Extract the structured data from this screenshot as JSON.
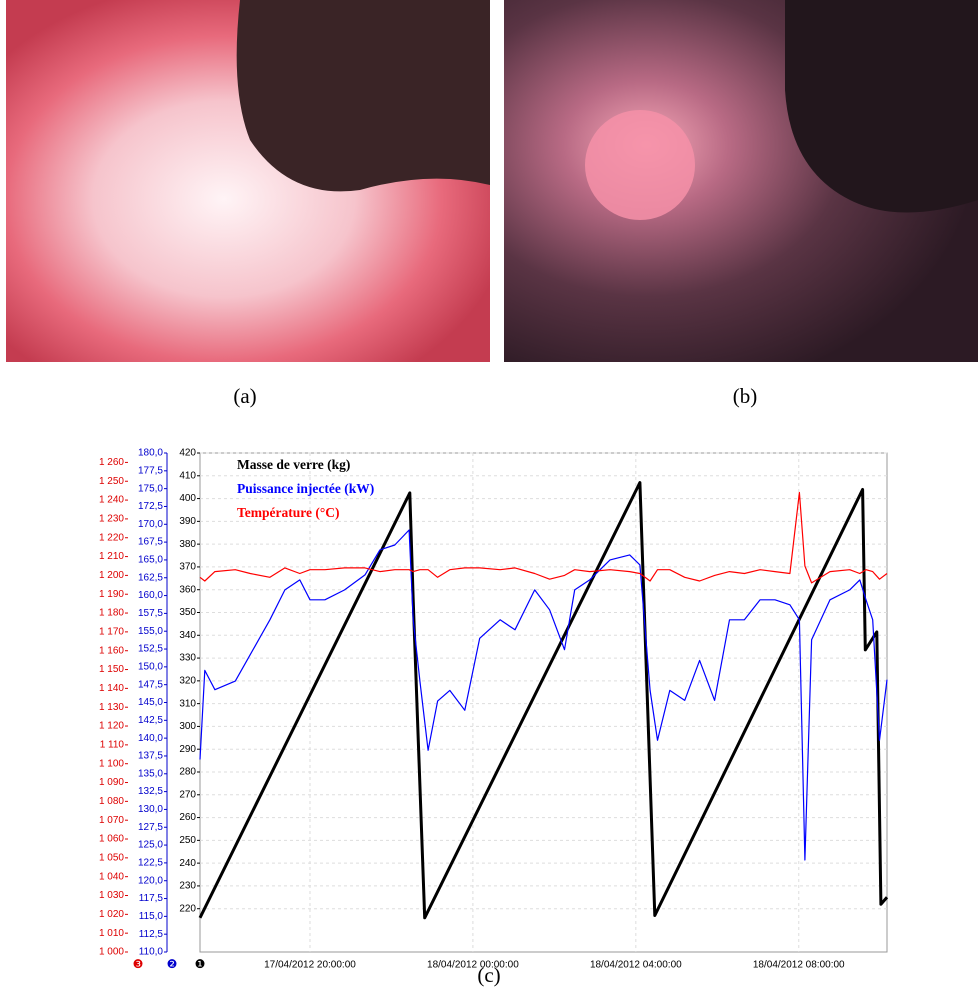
{
  "captions": [
    "(a)",
    "(b)",
    "(c)"
  ],
  "chart_data": {
    "type": "line",
    "ylabel": "❶",
    "y2label": "❷",
    "y3label": "❸",
    "xlim": [
      "2012-04-17T17:18:00",
      "2012-04-18T10:10:00"
    ],
    "xticks": [
      {
        "value": "2012-04-17T20:00:00",
        "label": "17/04/2012 20:00:00"
      },
      {
        "value": "2012-04-18T00:00:00",
        "label": "18/04/2012 00:00:00"
      },
      {
        "value": "2012-04-18T04:00:00",
        "label": "18/04/2012 04:00:00"
      },
      {
        "value": "2012-04-18T08:00:00",
        "label": "18/04/2012 08:00:00"
      }
    ],
    "ylim": [
      201,
      420
    ],
    "yticks": [
      220,
      230,
      240,
      250,
      260,
      270,
      280,
      290,
      300,
      310,
      320,
      330,
      340,
      350,
      360,
      370,
      380,
      390,
      400,
      410,
      420
    ],
    "y2lim": [
      110,
      180
    ],
    "y2ticks": [
      {
        "value": 110,
        "label": "110,0"
      },
      {
        "value": 112.5,
        "label": "112,5"
      },
      {
        "value": 115,
        "label": "115,0"
      },
      {
        "value": 117.5,
        "label": "117,5"
      },
      {
        "value": 120,
        "label": "120,0"
      },
      {
        "value": 122.5,
        "label": "122,5"
      },
      {
        "value": 125,
        "label": "125,0"
      },
      {
        "value": 127.5,
        "label": "127,5"
      },
      {
        "value": 130,
        "label": "130,0"
      },
      {
        "value": 132.5,
        "label": "132,5"
      },
      {
        "value": 135,
        "label": "135,0"
      },
      {
        "value": 137.5,
        "label": "137,5"
      },
      {
        "value": 140,
        "label": "140,0"
      },
      {
        "value": 142.5,
        "label": "142,5"
      },
      {
        "value": 145,
        "label": "145,0"
      },
      {
        "value": 147.5,
        "label": "147,5"
      },
      {
        "value": 150,
        "label": "150,0"
      },
      {
        "value": 152.5,
        "label": "152,5"
      },
      {
        "value": 155,
        "label": "155,0"
      },
      {
        "value": 157.5,
        "label": "157,5"
      },
      {
        "value": 160,
        "label": "160,0"
      },
      {
        "value": 162.5,
        "label": "162,5"
      },
      {
        "value": 165,
        "label": "165,0"
      },
      {
        "value": 167.5,
        "label": "167,5"
      },
      {
        "value": 170,
        "label": "170,0"
      },
      {
        "value": 172.5,
        "label": "172,5"
      },
      {
        "value": 175,
        "label": "175,0"
      },
      {
        "value": 177.5,
        "label": "177,5"
      },
      {
        "value": 180,
        "label": "180,0"
      }
    ],
    "y3lim": [
      1000,
      1265
    ],
    "y3ticks": [
      {
        "value": 1000,
        "label": "1 000"
      },
      {
        "value": 1010,
        "label": "1 010"
      },
      {
        "value": 1020,
        "label": "1 020"
      },
      {
        "value": 1030,
        "label": "1 030"
      },
      {
        "value": 1040,
        "label": "1 040"
      },
      {
        "value": 1050,
        "label": "1 050"
      },
      {
        "value": 1060,
        "label": "1 060"
      },
      {
        "value": 1070,
        "label": "1 070"
      },
      {
        "value": 1080,
        "label": "1 080"
      },
      {
        "value": 1090,
        "label": "1 090"
      },
      {
        "value": 1100,
        "label": "1 100"
      },
      {
        "value": 1110,
        "label": "1 110"
      },
      {
        "value": 1120,
        "label": "1 120"
      },
      {
        "value": 1130,
        "label": "1 130"
      },
      {
        "value": 1140,
        "label": "1 140"
      },
      {
        "value": 1150,
        "label": "1 150"
      },
      {
        "value": 1160,
        "label": "1 160"
      },
      {
        "value": 1170,
        "label": "1 170"
      },
      {
        "value": 1180,
        "label": "1 180"
      },
      {
        "value": 1190,
        "label": "1 190"
      },
      {
        "value": 1200,
        "label": "1 200"
      },
      {
        "value": 1210,
        "label": "1 210"
      },
      {
        "value": 1220,
        "label": "1 220"
      },
      {
        "value": 1230,
        "label": "1 230"
      },
      {
        "value": 1240,
        "label": "1 240"
      },
      {
        "value": 1250,
        "label": "1 250"
      },
      {
        "value": 1260,
        "label": "1 260"
      }
    ],
    "grid": true,
    "legend": "upper left",
    "series": [
      {
        "name": "Masse de verre (kg)",
        "color": "#000000",
        "axis": "y",
        "x": [
          "2012-04-17T17:18:00",
          "2012-04-17T22:27:00",
          "2012-04-17T22:32:00",
          "2012-04-17T22:49:00",
          "2012-04-18T04:06:00",
          "2012-04-18T04:28:00",
          "2012-04-18T09:34:00",
          "2012-04-18T09:38:00",
          "2012-04-18T09:55:00",
          "2012-04-18T10:01:00",
          "2012-04-18T10:10:00"
        ],
        "values": [
          216,
          402.5,
          355.5,
          216,
          407,
          217,
          404,
          333.6,
          341.5,
          222,
          225
        ]
      },
      {
        "name": "Puissance injectée (kW)",
        "color": "#0000ff",
        "axis": "y2",
        "x": [
          "2012-04-17T17:18:00",
          "2012-04-17T17:25:00",
          "2012-04-17T17:40:00",
          "2012-04-17T18:10:00",
          "2012-04-17T18:32:00",
          "2012-04-17T19:01:00",
          "2012-04-17T19:23:00",
          "2012-04-17T19:45:00",
          "2012-04-17T20:00:00",
          "2012-04-17T20:22:00",
          "2012-04-17T20:51:00",
          "2012-04-17T21:21:00",
          "2012-04-17T21:43:00",
          "2012-04-17T22:05:00",
          "2012-04-17T22:26:00",
          "2012-04-17T22:32:00",
          "2012-04-17T22:42:00",
          "2012-04-17T22:54:00",
          "2012-04-17T23:08:00",
          "2012-04-17T23:26:00",
          "2012-04-17T23:48:00",
          "2012-04-18T00:10:00",
          "2012-04-18T00:40:00",
          "2012-04-18T01:02:00",
          "2012-04-18T01:31:00",
          "2012-04-18T01:53:00",
          "2012-04-18T02:15:00",
          "2012-04-18T02:30:00",
          "2012-04-18T02:52:00",
          "2012-04-18T03:22:00",
          "2012-04-18T03:51:00",
          "2012-04-18T04:06:00",
          "2012-04-18T04:21:00",
          "2012-04-18T04:32:00",
          "2012-04-18T04:50:00",
          "2012-04-18T05:12:00",
          "2012-04-18T05:34:00",
          "2012-04-18T05:56:00",
          "2012-04-18T06:18:00",
          "2012-04-18T06:40:00",
          "2012-04-18T07:03:00",
          "2012-04-18T07:25:00",
          "2012-04-18T07:47:00",
          "2012-04-18T08:01:00",
          "2012-04-18T08:09:00",
          "2012-04-18T08:19:00",
          "2012-04-18T08:46:00",
          "2012-04-18T09:15:00",
          "2012-04-18T09:30:00",
          "2012-04-18T09:39:00",
          "2012-04-18T09:49:00",
          "2012-04-18T09:59:00",
          "2012-04-18T10:10:00"
        ],
        "values": [
          137,
          149.5,
          146.8,
          148,
          151.7,
          156.6,
          160.8,
          162.2,
          159.4,
          159.4,
          160.8,
          162.9,
          166.4,
          167.1,
          169.2,
          156.6,
          148,
          138.3,
          145.2,
          146.7,
          143.9,
          154,
          156.6,
          155.2,
          160.8,
          158,
          152.4,
          160.8,
          162.2,
          165,
          165.7,
          164.3,
          146.7,
          139.7,
          146.7,
          145.3,
          150.9,
          145.3,
          156.6,
          156.6,
          159.4,
          159.4,
          158.7,
          156.6,
          122.9,
          153.8,
          159.4,
          160.8,
          162.2,
          159.4,
          156.6,
          139.7,
          148.2
        ]
      },
      {
        "name": "Température (°C)",
        "color": "#ff0000",
        "axis": "y3",
        "x": [
          "2012-04-17T17:18:00",
          "2012-04-17T17:25:00",
          "2012-04-17T17:40:00",
          "2012-04-17T18:10:00",
          "2012-04-17T18:32:00",
          "2012-04-17T19:01:00",
          "2012-04-17T19:23:00",
          "2012-04-17T19:45:00",
          "2012-04-17T20:00:00",
          "2012-04-17T20:22:00",
          "2012-04-17T20:51:00",
          "2012-04-17T21:21:00",
          "2012-04-17T21:43:00",
          "2012-04-17T22:05:00",
          "2012-04-17T22:26:00",
          "2012-04-17T22:32:00",
          "2012-04-17T22:42:00",
          "2012-04-17T22:54:00",
          "2012-04-17T23:08:00",
          "2012-04-17T23:26:00",
          "2012-04-17T23:48:00",
          "2012-04-18T00:10:00",
          "2012-04-18T00:40:00",
          "2012-04-18T01:02:00",
          "2012-04-18T01:31:00",
          "2012-04-18T01:53:00",
          "2012-04-18T02:15:00",
          "2012-04-18T02:30:00",
          "2012-04-18T02:52:00",
          "2012-04-18T03:22:00",
          "2012-04-18T03:51:00",
          "2012-04-18T04:06:00",
          "2012-04-18T04:21:00",
          "2012-04-18T04:32:00",
          "2012-04-18T04:50:00",
          "2012-04-18T05:12:00",
          "2012-04-18T05:34:00",
          "2012-04-18T05:56:00",
          "2012-04-18T06:18:00",
          "2012-04-18T06:40:00",
          "2012-04-18T07:03:00",
          "2012-04-18T07:25:00",
          "2012-04-18T07:47:00",
          "2012-04-18T08:01:00",
          "2012-04-18T08:09:00",
          "2012-04-18T08:19:00",
          "2012-04-18T08:46:00",
          "2012-04-18T09:15:00",
          "2012-04-18T09:30:00",
          "2012-04-18T09:39:00",
          "2012-04-18T09:49:00",
          "2012-04-18T09:59:00",
          "2012-04-18T10:10:00"
        ],
        "values": [
          1199,
          1197,
          1202,
          1203,
          1201,
          1199,
          1204,
          1201,
          1203,
          1203,
          1204,
          1204,
          1202,
          1203,
          1203,
          1202,
          1203,
          1203,
          1199,
          1203,
          1204,
          1204,
          1203,
          1204,
          1201,
          1198,
          1200,
          1203,
          1202,
          1203,
          1202,
          1201,
          1197,
          1203,
          1203,
          1199,
          1197,
          1200,
          1202,
          1201,
          1203,
          1202,
          1201,
          1244,
          1205,
          1196,
          1202,
          1203,
          1201,
          1203,
          1202,
          1198,
          1201
        ]
      }
    ]
  }
}
